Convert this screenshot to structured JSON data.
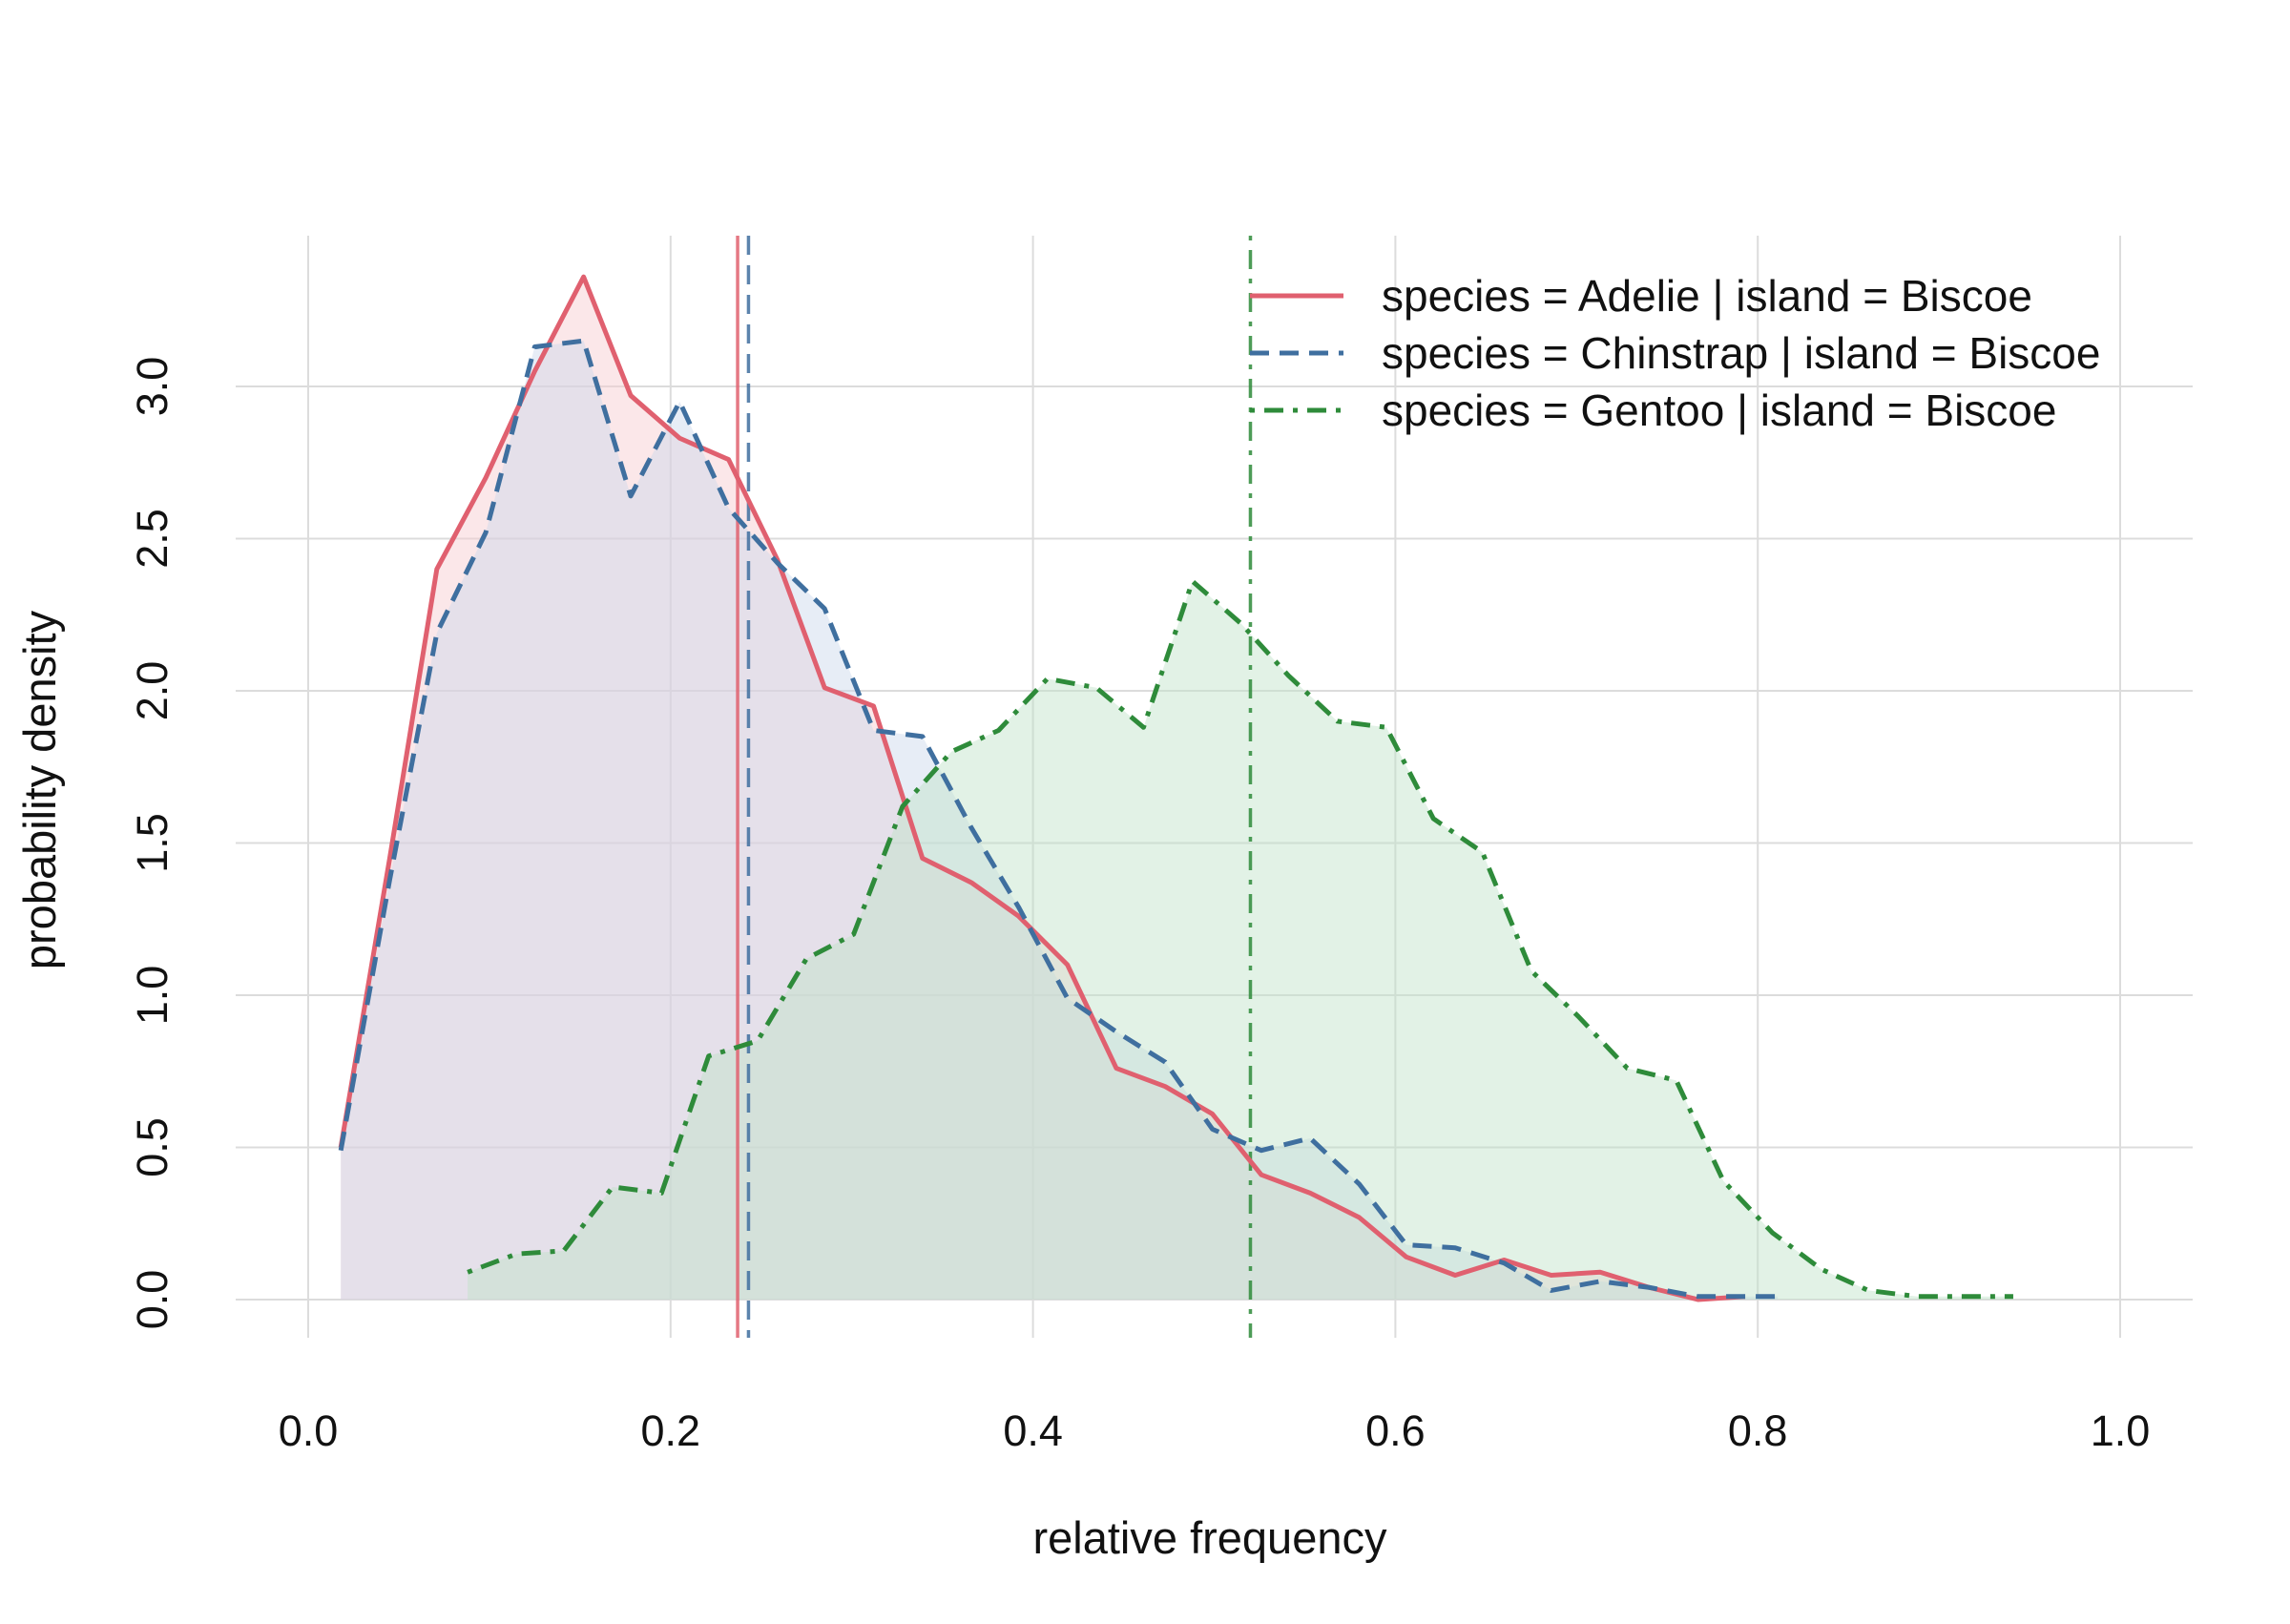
{
  "chart_data": {
    "type": "line",
    "title": "",
    "xlabel": "relative frequency",
    "ylabel": "probability density",
    "xlim": [
      -0.04,
      1.04
    ],
    "ylim": [
      -0.12,
      3.5
    ],
    "x_ticks": [
      0.0,
      0.2,
      0.4,
      0.6,
      0.8,
      1.0
    ],
    "x_tick_labels": [
      "0.0",
      "0.2",
      "0.4",
      "0.6",
      "0.8",
      "1.0"
    ],
    "y_ticks": [
      0.0,
      0.5,
      1.0,
      1.5,
      2.0,
      2.5,
      3.0
    ],
    "y_tick_labels": [
      "0.0",
      "0.5",
      "1.0",
      "1.5",
      "2.0",
      "2.5",
      "3.0"
    ],
    "grid": true,
    "legend_position": "top-right",
    "series": [
      {
        "name": "species = Adelie | island = Biscoe",
        "color": "#E0606F",
        "line_style": "solid",
        "fill_color": "#F7C9CF",
        "mean": 0.237,
        "x": [
          0.018,
          0.045,
          0.071,
          0.098,
          0.125,
          0.152,
          0.178,
          0.205,
          0.232,
          0.259,
          0.285,
          0.312,
          0.339,
          0.366,
          0.392,
          0.419,
          0.446,
          0.473,
          0.499,
          0.526,
          0.553,
          0.58,
          0.606,
          0.633,
          0.66,
          0.686,
          0.713,
          0.74,
          0.767,
          0.793
        ],
        "y": [
          0.5,
          1.45,
          2.4,
          2.7,
          3.05,
          3.36,
          2.97,
          2.83,
          2.76,
          2.43,
          2.01,
          1.95,
          1.45,
          1.37,
          1.26,
          1.1,
          0.76,
          0.7,
          0.61,
          0.41,
          0.35,
          0.27,
          0.14,
          0.08,
          0.13,
          0.08,
          0.09,
          0.04,
          0.0,
          0.01
        ]
      },
      {
        "name": "species = Chinstrap | island = Biscoe",
        "color": "#3F6F9F",
        "line_style": "dashed",
        "fill_color": "#C9D6EA",
        "mean": 0.243,
        "x": [
          0.018,
          0.045,
          0.071,
          0.098,
          0.125,
          0.152,
          0.178,
          0.205,
          0.232,
          0.259,
          0.285,
          0.312,
          0.339,
          0.366,
          0.392,
          0.419,
          0.446,
          0.473,
          0.499,
          0.526,
          0.553,
          0.58,
          0.606,
          0.633,
          0.66,
          0.686,
          0.713,
          0.74,
          0.767,
          0.793,
          0.811
        ],
        "y": [
          0.49,
          1.38,
          2.19,
          2.52,
          3.13,
          3.15,
          2.64,
          2.95,
          2.6,
          2.42,
          2.27,
          1.87,
          1.85,
          1.55,
          1.29,
          0.99,
          0.88,
          0.78,
          0.56,
          0.49,
          0.53,
          0.38,
          0.18,
          0.17,
          0.12,
          0.03,
          0.06,
          0.04,
          0.01,
          0.01,
          0.01
        ]
      },
      {
        "name": "species = Gentoo | island = Biscoe",
        "color": "#2E8B3A",
        "line_style": "dotdash",
        "fill_color": "#BFE3C7",
        "mean": 0.52,
        "x": [
          0.088,
          0.115,
          0.141,
          0.168,
          0.195,
          0.221,
          0.248,
          0.275,
          0.301,
          0.328,
          0.355,
          0.381,
          0.408,
          0.435,
          0.461,
          0.488,
          0.515,
          0.541,
          0.568,
          0.595,
          0.621,
          0.648,
          0.675,
          0.701,
          0.728,
          0.755,
          0.781,
          0.808,
          0.835,
          0.861,
          0.888,
          0.915,
          0.941
        ],
        "y": [
          0.09,
          0.15,
          0.16,
          0.37,
          0.35,
          0.8,
          0.85,
          1.12,
          1.2,
          1.62,
          1.8,
          1.87,
          2.04,
          2.01,
          1.88,
          2.36,
          2.22,
          2.05,
          1.9,
          1.88,
          1.58,
          1.47,
          1.08,
          0.93,
          0.76,
          0.72,
          0.39,
          0.22,
          0.1,
          0.03,
          0.01,
          0.01,
          0.01
        ]
      }
    ]
  }
}
